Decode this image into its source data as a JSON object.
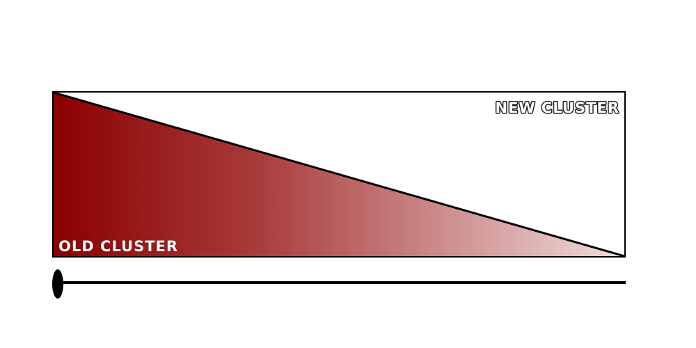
{
  "labels": {
    "old_cluster": "OLD CLUSTER",
    "new_cluster": "NEW CLUSTER"
  },
  "colors": {
    "old_cluster_fill": "#8b0000",
    "old_cluster_fade": "#f0dcdc",
    "outline": "#000000",
    "background": "#ffffff"
  },
  "timeline": {
    "start_marker": "ellipse",
    "direction": "left-to-right"
  }
}
